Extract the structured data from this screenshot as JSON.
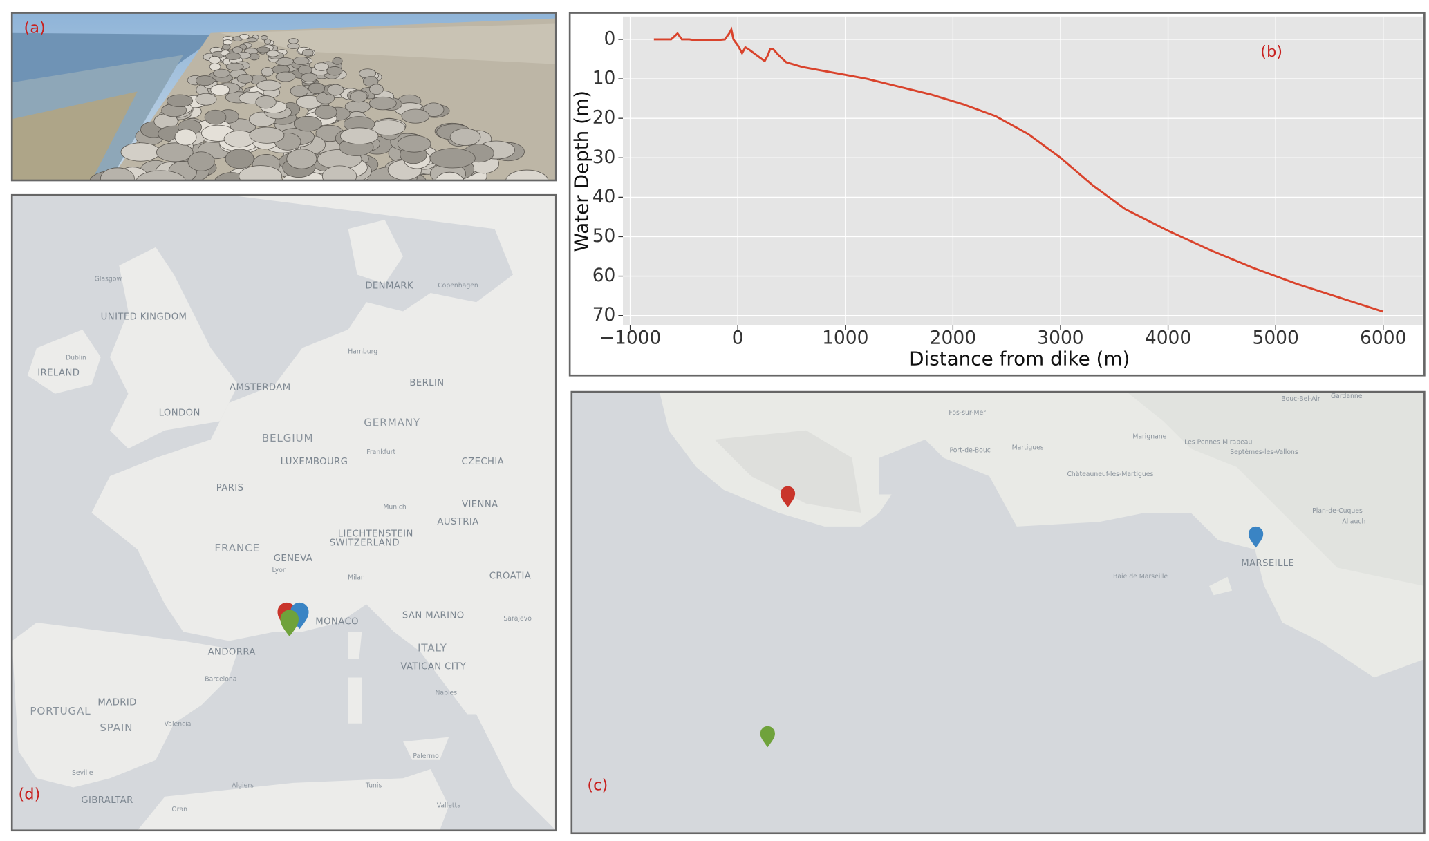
{
  "chart_data": {
    "type": "line",
    "panel_label": "(b)",
    "x_label": "Distance from dike (m)",
    "y_label": "Water Depth (m)",
    "xlim": [
      -1068,
      6366
    ],
    "ylim": [
      -5.8,
      72.4
    ],
    "y_inverted": true,
    "grid": true,
    "xticks": [
      {
        "value": -1000,
        "label": "−1000"
      },
      0,
      1000,
      2000,
      3000,
      4000,
      5000,
      6000
    ],
    "yticks": [
      0,
      10,
      20,
      30,
      40,
      50,
      60,
      70
    ],
    "series": [
      {
        "color": "#d9432c",
        "x": [
          -780,
          -700,
          -620,
          -580,
          -560,
          -520,
          -450,
          -400,
          -300,
          -200,
          -120,
          -80,
          -60,
          -40,
          0,
          40,
          70,
          100,
          150,
          200,
          250,
          280,
          300,
          330,
          380,
          450,
          600,
          800,
          1000,
          1200,
          1500,
          1800,
          2100,
          2400,
          2700,
          3000,
          3300,
          3600,
          4000,
          4400,
          4800,
          5200,
          5600,
          6000
        ],
        "values": [
          0,
          0,
          0,
          -1,
          -1.5,
          0,
          0,
          0.2,
          0.2,
          0.2,
          0,
          -1.5,
          -2.5,
          0,
          1.5,
          3.5,
          2,
          2.5,
          3.5,
          4.5,
          5.5,
          4,
          2.5,
          2.5,
          4,
          5.8,
          7,
          8,
          9,
          10,
          12,
          14,
          16.5,
          19.5,
          24,
          30,
          37,
          43,
          48.5,
          53.5,
          58,
          62,
          65.5,
          69
        ]
      }
    ]
  },
  "photo": {
    "label": "(a)"
  },
  "europe_map": {
    "label": "(d)",
    "labels": [
      "Glasgow",
      "UNITED KINGDOM",
      "Dublin",
      "IRELAND",
      "LONDON",
      "AMSTERDAM",
      "DENMARK",
      "Copenhagen",
      "Hamburg",
      "BERLIN",
      "GERMANY",
      "BELGIUM",
      "LUXEMBOURG",
      "Frankfurt",
      "CZECHIA",
      "PARIS",
      "Munich",
      "VIENNA",
      "AUSTRIA",
      "LIECHTENSTEIN",
      "SWITZERLAND",
      "FRANCE",
      "GENEVA",
      "Lyon",
      "Milan",
      "CROATIA",
      "SAN MARINO",
      "MONACO",
      "Sarajevo",
      "ANDORRA",
      "ITALY",
      "VATICAN CITY",
      "Barcelona",
      "MADRID",
      "PORTUGAL",
      "SPAIN",
      "Valencia",
      "Naples",
      "Palermo",
      "Seville",
      "Algiers",
      "Tunis",
      "GIBRALTAR",
      "Oran",
      "Valletta"
    ]
  },
  "marseille_map": {
    "label": "(c)",
    "labels": [
      "Fos-sur-Mer",
      "Port-de-Bouc",
      "Martigues",
      "Marignane",
      "Les Pennes-Mirabeau",
      "Septèmes-les-Vallons",
      "Châteauneuf-les-Martigues",
      "Bouc-Bel-Air",
      "Gardanne",
      "Plan-de-Cuques",
      "Allauch",
      "MARSEILLE",
      "Baie de Marseille"
    ]
  }
}
